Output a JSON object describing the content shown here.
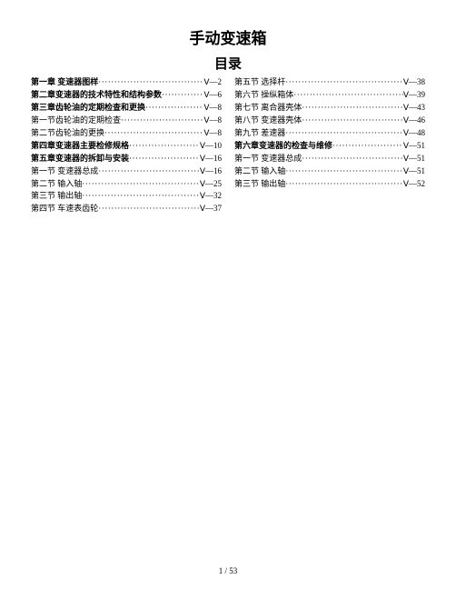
{
  "title": "手动变速箱",
  "subtitle": "目录",
  "left": [
    {
      "label": "第一章 变速器图样",
      "page": "Ⅴ—2",
      "bold": true
    },
    {
      "label": "第二章变速器的技术特性和结构参数",
      "page": "Ⅴ—6",
      "bold": true
    },
    {
      "label": "第三章齿轮油的定期检查和更换",
      "page": "Ⅴ—8",
      "bold": true
    },
    {
      "label": "第一节齿轮油的定期检查",
      "page": "Ⅴ—8",
      "bold": false
    },
    {
      "label": "第二节齿轮油的更换",
      "page": "Ⅴ—8",
      "bold": false
    },
    {
      "label": "第四章变速器主要检修规格",
      "page": "Ⅴ—10",
      "bold": true
    },
    {
      "label": "第五章变速器的拆卸与安装",
      "page": "Ⅴ—16",
      "bold": true
    },
    {
      "label": "第一节 变速器总成",
      "page": "Ⅴ—16",
      "bold": false
    },
    {
      "label": "第二节 输入轴",
      "page": "Ⅴ—25",
      "bold": false
    },
    {
      "label": "第三节 输出轴",
      "page": "Ⅴ—32",
      "bold": false
    },
    {
      "label": "第四节 车速表齿轮",
      "page": "Ⅴ—37",
      "bold": false
    }
  ],
  "right": [
    {
      "label": "第五节 选择杆",
      "page": "Ⅴ—38",
      "bold": false
    },
    {
      "label": "第六节 操纵箱体",
      "page": "Ⅴ—39",
      "bold": false
    },
    {
      "label": "第七节 离合器壳体",
      "page": "Ⅴ—43",
      "bold": false
    },
    {
      "label": "第八节 变速器壳体",
      "page": "Ⅴ—46",
      "bold": false
    },
    {
      "label": "第九节 差速器",
      "page": "Ⅴ—48",
      "bold": false
    },
    {
      "label": "第六章变速器的检查与维修",
      "page": "Ⅴ—51",
      "bold": true
    },
    {
      "label": "第一节 变速器总成",
      "page": "Ⅴ—51",
      "bold": false
    },
    {
      "label": "第二节 输入轴",
      "page": "Ⅴ—51",
      "bold": false
    },
    {
      "label": "第三节 输出轴",
      "page": "Ⅴ—52",
      "bold": false
    }
  ],
  "footer": "1 / 53"
}
